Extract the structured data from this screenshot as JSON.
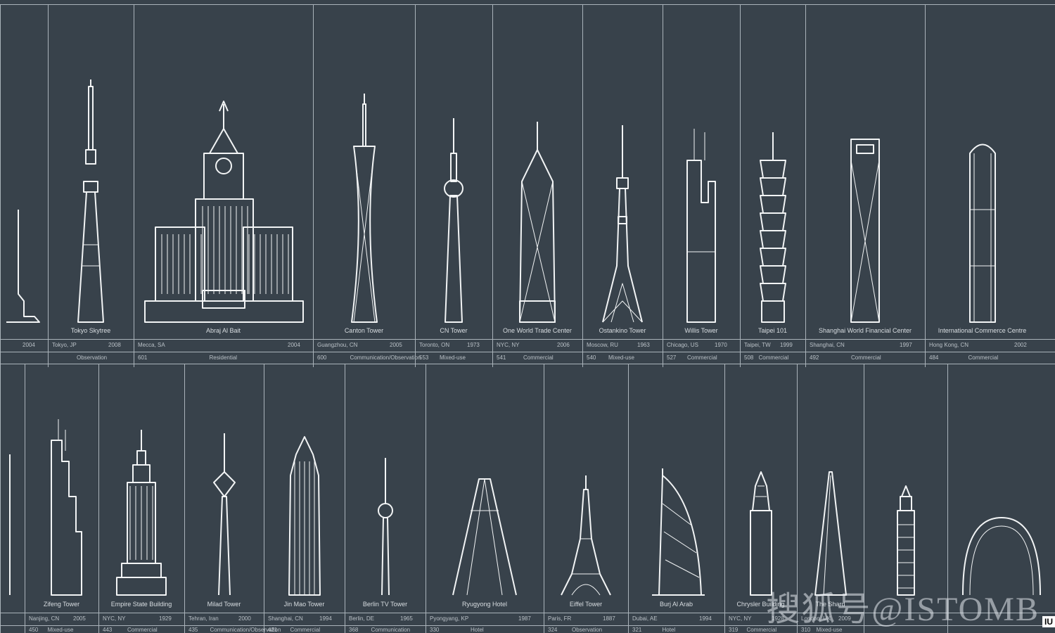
{
  "row1": [
    {
      "name": "",
      "city": "",
      "year": "2004",
      "h": "",
      "use": ""
    },
    {
      "name": "Tokyo Skytree",
      "city": "Tokyo, JP",
      "year": "2008",
      "h": "",
      "use": "Observation"
    },
    {
      "name": "Abraj Al Bait",
      "city": "Mecca, SA",
      "year": "2004",
      "h": "601",
      "use": "Residential"
    },
    {
      "name": "Canton Tower",
      "city": "Guangzhou, CN",
      "year": "2005",
      "h": "600",
      "use": "Communication/Observation"
    },
    {
      "name": "CN Tower",
      "city": "Toronto, ON",
      "year": "1973",
      "h": "553",
      "use": "Mixed-use"
    },
    {
      "name": "One World Trade Center",
      "city": "NYC, NY",
      "year": "2006",
      "h": "541",
      "use": "Commercial"
    },
    {
      "name": "Ostankino Tower",
      "city": "Moscow, RU",
      "year": "1963",
      "h": "540",
      "use": "Mixed-use"
    },
    {
      "name": "Willis Tower",
      "city": "Chicago, US",
      "year": "1970",
      "h": "527",
      "use": "Commercial"
    },
    {
      "name": "Taipei 101",
      "city": "Taipei, TW",
      "year": "1999",
      "h": "508",
      "use": "Commercial"
    },
    {
      "name": "Shanghai World Financial Center",
      "city": "Shanghai, CN",
      "year": "1997",
      "h": "492",
      "use": "Commercial"
    },
    {
      "name": "International Commerce Centre",
      "city": "Hong Kong, CN",
      "year": "2002",
      "h": "484",
      "use": "Commercial"
    }
  ],
  "row2": [
    {
      "name": "",
      "city": "",
      "year": "",
      "h": "",
      "use": ""
    },
    {
      "name": "Zifeng Tower",
      "city": "Nanjing, CN",
      "year": "2005",
      "h": "450",
      "use": "Mixed-use"
    },
    {
      "name": "Empire State Building",
      "city": "NYC, NY",
      "year": "1929",
      "h": "443",
      "use": "Commercial"
    },
    {
      "name": "Milad Tower",
      "city": "Tehran, Iran",
      "year": "2000",
      "h": "435",
      "use": "Communication/Observation"
    },
    {
      "name": "Jin Mao Tower",
      "city": "Shanghai, CN",
      "year": "1994",
      "h": "421",
      "use": "Commercial"
    },
    {
      "name": "Berlin TV Tower",
      "city": "Berlin, DE",
      "year": "1965",
      "h": "368",
      "use": "Communication"
    },
    {
      "name": "Ryugyong Hotel",
      "city": "Pyongyang, KP",
      "year": "1987",
      "h": "330",
      "use": "Hotel"
    },
    {
      "name": "Eiffel Tower",
      "city": "Paris, FR",
      "year": "1887",
      "h": "324",
      "use": "Observation"
    },
    {
      "name": "Burj Al Arab",
      "city": "Dubai, AE",
      "year": "1994",
      "h": "321",
      "use": "Hotel"
    },
    {
      "name": "Chrysler Building",
      "city": "NYC, NY",
      "year": "1928",
      "h": "319",
      "use": "Commercial"
    },
    {
      "name": "The Shard",
      "city": "London, UK",
      "year": "2009",
      "h": "310",
      "use": "Mixed-use"
    },
    {
      "name": "",
      "city": "",
      "year": "",
      "h": "",
      "use": ""
    },
    {
      "name": "",
      "city": "",
      "year": "",
      "h": "",
      "use": ""
    }
  ],
  "watermark": {
    "text": "搜狐号@ISTOMB",
    "badge": "IU"
  },
  "colors": {
    "background": "#38424b",
    "line": "#aab3ba",
    "drawing": "#f2f4f5"
  }
}
